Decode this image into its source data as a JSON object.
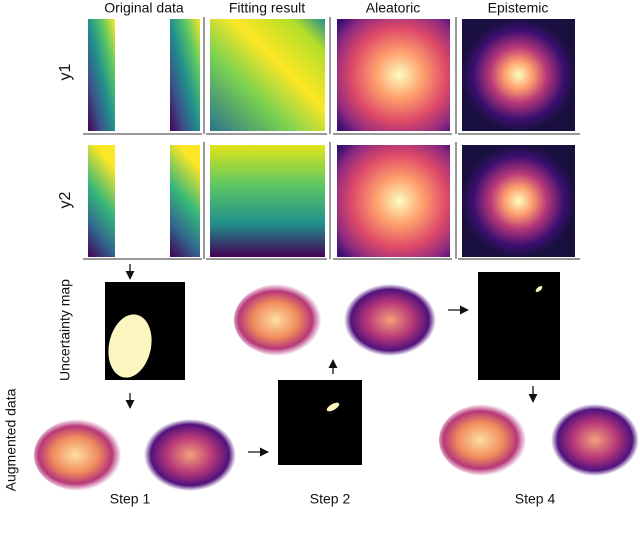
{
  "columns": [
    "Original data",
    "Fitting result",
    "Aleatoric",
    "Epistemic"
  ],
  "rows": [
    "y1",
    "y2"
  ],
  "uncertainty_label": "Uncertainty map",
  "augmented_label": "Augmented data",
  "steps": [
    "Step 1",
    "Step 2",
    "Step 4"
  ]
}
